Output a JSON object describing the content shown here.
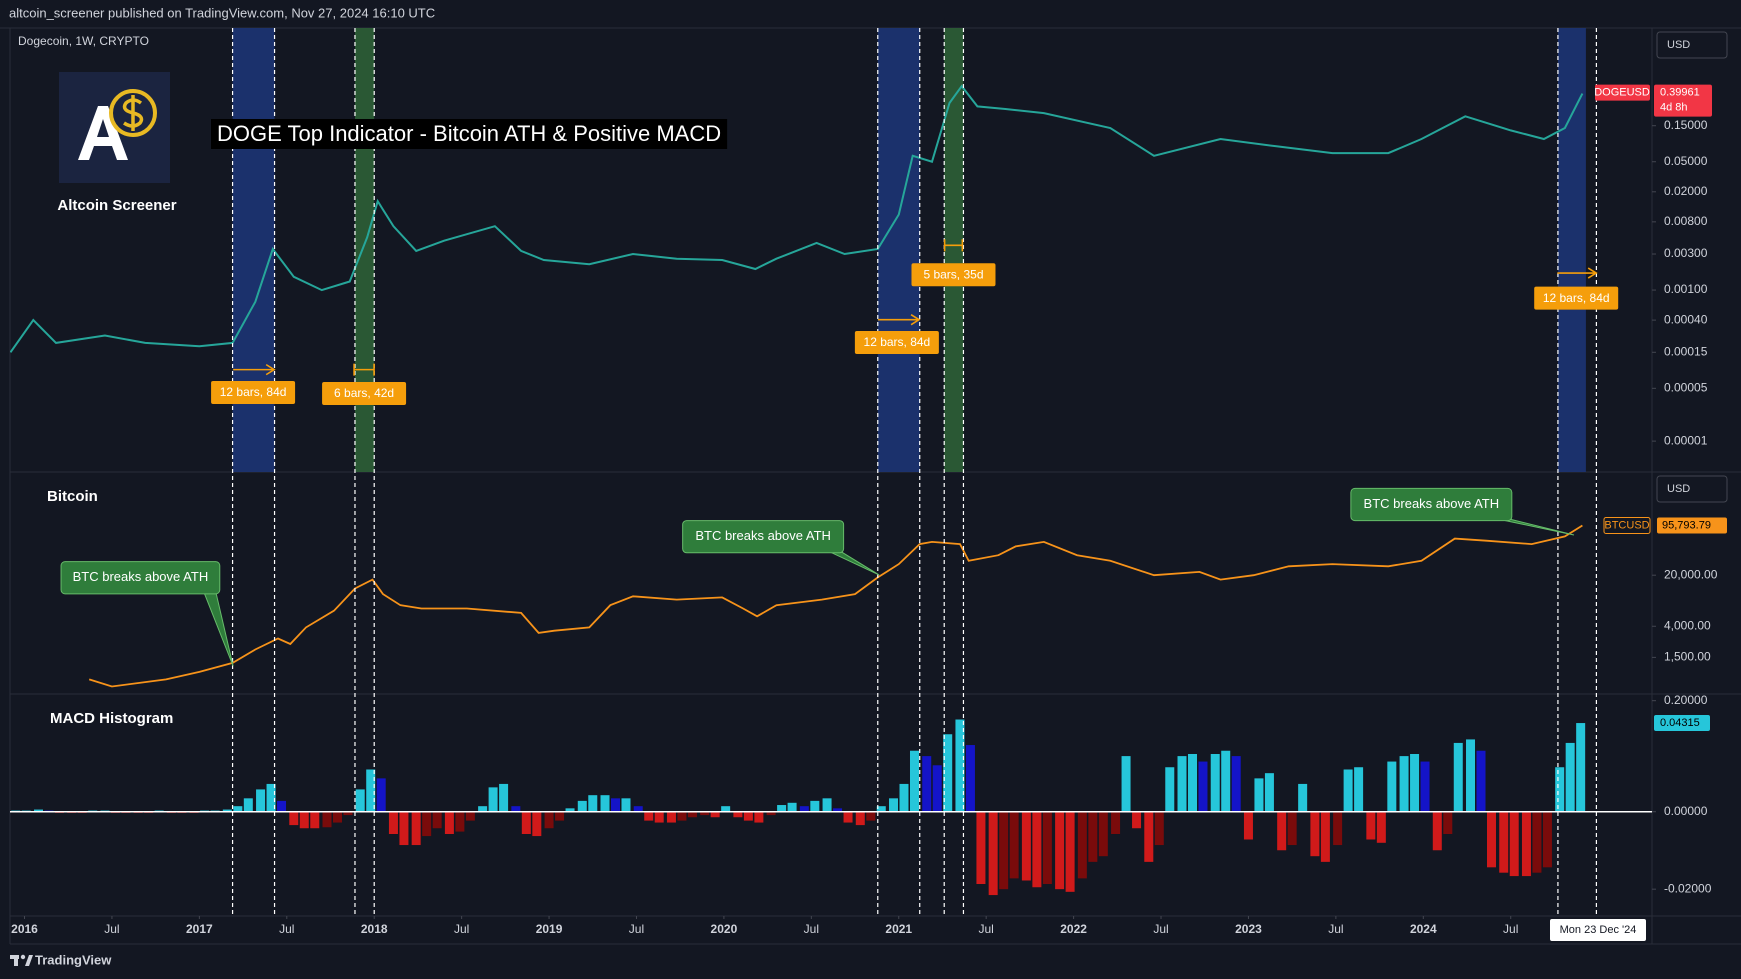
{
  "header": {
    "publisher": "altcoin_screener published on TradingView.com, Nov 27, 2024 16:10 UTC"
  },
  "logo": {
    "name": "Altcoin Screener"
  },
  "footer": {
    "brand": "TradingView"
  },
  "chart_data": [
    {
      "type": "line",
      "title": "DOGE Top Indicator - Bitcoin ATH & Positive MACD",
      "legend_title": "Dogecoin, 1W, CRYPTO",
      "currency": "USD",
      "log_scale": true,
      "x": [
        2015.92,
        2016.05,
        2016.18,
        2016.46,
        2016.69,
        2017.0,
        2017.19,
        2017.32,
        2017.42,
        2017.54,
        2017.7,
        2017.86,
        2017.96,
        2018.02,
        2018.11,
        2018.24,
        2018.4,
        2018.69,
        2018.84,
        2018.97,
        2019.23,
        2019.48,
        2019.73,
        2019.99,
        2020.18,
        2020.3,
        2020.53,
        2020.69,
        2020.88,
        2021.0,
        2021.08,
        2021.19,
        2021.29,
        2021.36,
        2021.45,
        2021.61,
        2021.83,
        2022.21,
        2022.46,
        2022.84,
        2023.16,
        2023.48,
        2023.8,
        2023.99,
        2024.24,
        2024.5,
        2024.69,
        2024.81,
        2024.91
      ],
      "series": [
        {
          "name": "DOGEUSD",
          "color": "#26a69a",
          "values": [
            0.00015,
            0.0004,
            0.0002,
            0.00025,
            0.0002,
            0.00018,
            0.0002,
            0.0007,
            0.0035,
            0.0015,
            0.001,
            0.0013,
            0.005,
            0.015,
            0.007,
            0.0033,
            0.0045,
            0.007,
            0.0033,
            0.0025,
            0.0022,
            0.003,
            0.0026,
            0.0025,
            0.0019,
            0.0026,
            0.0042,
            0.003,
            0.0035,
            0.01,
            0.06,
            0.05,
            0.3,
            0.5,
            0.27,
            0.25,
            0.22,
            0.14,
            0.06,
            0.1,
            0.08,
            0.065,
            0.065,
            0.1,
            0.2,
            0.13,
            0.1,
            0.14,
            0.39961
          ]
        }
      ],
      "countdown": "4d 8h",
      "xlim": [
        2015.917,
        2025.308
      ],
      "ylim": [
        3.9e-06,
        2.95
      ],
      "yticks": [
        {
          "value": 0.15,
          "label": "0.15000"
        },
        {
          "value": 0.05,
          "label": "0.05000"
        },
        {
          "value": 0.02,
          "label": "0.02000"
        },
        {
          "value": 0.008,
          "label": "0.00800"
        },
        {
          "value": 0.003,
          "label": "0.00300"
        },
        {
          "value": 0.001,
          "label": "0.00100"
        },
        {
          "value": 0.0004,
          "label": "0.00040"
        },
        {
          "value": 0.00015,
          "label": "0.00015"
        },
        {
          "value": 5e-05,
          "label": "0.00005"
        },
        {
          "value": 1e-05,
          "label": "0.00001"
        }
      ],
      "highlights": [
        {
          "start": 2017.19,
          "end": 2017.43,
          "color": "#1c3473"
        },
        {
          "start": 2017.89,
          "end": 2018.0,
          "color": "#2d5e36"
        },
        {
          "start": 2020.88,
          "end": 2021.12,
          "color": "#1c3473"
        },
        {
          "start": 2021.26,
          "end": 2021.37,
          "color": "#2d5e36"
        },
        {
          "start": 2024.77,
          "end": 2024.93,
          "color": "#1c3473"
        }
      ],
      "markers": [
        2017.19,
        2017.43,
        2017.89,
        2018.0,
        2020.88,
        2021.12,
        2021.26,
        2021.37,
        2024.77,
        2024.99
      ],
      "measure_labels": [
        "12 bars, 84d",
        "6 bars, 42d",
        "12 bars, 84d",
        "5 bars, 35d",
        "12 bars, 84d"
      ]
    },
    {
      "type": "line",
      "title": "Bitcoin",
      "currency": "USD",
      "log_scale": true,
      "x": [
        2016.37,
        2016.5,
        2016.81,
        2017.0,
        2017.19,
        2017.32,
        2017.45,
        2017.52,
        2017.61,
        2017.77,
        2017.89,
        2017.99,
        2018.05,
        2018.15,
        2018.27,
        2018.53,
        2018.84,
        2018.94,
        2019.03,
        2019.23,
        2019.35,
        2019.48,
        2019.73,
        2019.99,
        2020.11,
        2020.19,
        2020.3,
        2020.56,
        2020.75,
        2020.88,
        2021.0,
        2021.12,
        2021.19,
        2021.35,
        2021.4,
        2021.57,
        2021.67,
        2021.83,
        2022.02,
        2022.21,
        2022.46,
        2022.72,
        2022.84,
        2023.03,
        2023.23,
        2023.48,
        2023.8,
        2023.99,
        2024.18,
        2024.37,
        2024.62,
        2024.81,
        2024.91
      ],
      "series": [
        {
          "name": "BTCUSD",
          "color": "#f7931a",
          "values": [
            750,
            600,
            750,
            950,
            1260,
            1920,
            2720,
            2290,
            3860,
            6530,
            13140,
            17400,
            11030,
            7780,
            7000,
            7000,
            6090,
            3240,
            3480,
            3860,
            7780,
            10280,
            9270,
            9930,
            7000,
            5480,
            7780,
            9270,
            11030,
            18660,
            28400,
            53300,
            57100,
            53300,
            31500,
            37550,
            49700,
            57100,
            37550,
            31500,
            20000,
            22200,
            17400,
            20000,
            26500,
            28400,
            26500,
            31500,
            63450,
            59200,
            53300,
            68000,
            95793.79
          ],
          "value_labels": [
            null,
            null,
            null,
            null,
            null,
            null,
            null,
            null,
            null,
            null,
            null,
            null,
            null,
            null,
            null,
            null,
            null,
            null,
            null,
            null,
            null,
            null,
            null,
            null,
            null,
            null,
            null,
            null,
            null,
            null,
            null,
            null,
            null,
            null,
            null,
            null,
            null,
            null,
            null,
            null,
            null,
            null,
            null,
            null,
            null,
            null,
            null,
            null,
            null,
            null,
            null,
            null,
            "95,793.79"
          ]
        }
      ],
      "callouts": [
        "BTC breaks above ATH",
        "BTC breaks above ATH",
        "BTC breaks above ATH"
      ],
      "xlim": [
        2015.917,
        2025.308
      ],
      "ylim": [
        473,
        517000
      ],
      "yticks": [
        {
          "value": 20000,
          "label": "20,000.00"
        },
        {
          "value": 4000,
          "label": "4,000.00"
        },
        {
          "value": 1500,
          "label": "1,500.00"
        }
      ]
    },
    {
      "type": "bar",
      "title": "MACD Histogram",
      "yscale": "symlog",
      "x": [
        2015.95,
        2016.01,
        2016.08,
        2016.14,
        2016.2,
        2016.27,
        2016.33,
        2016.39,
        2016.46,
        2016.52,
        2016.58,
        2016.65,
        2016.71,
        2016.77,
        2016.84,
        2016.9,
        2016.97,
        2017.03,
        2017.09,
        2017.16,
        2017.22,
        2017.28,
        2017.35,
        2017.41,
        2017.47,
        2017.54,
        2017.6,
        2017.66,
        2017.73,
        2017.79,
        2017.85,
        2017.92,
        2017.98,
        2018.04,
        2018.11,
        2018.17,
        2018.24,
        2018.3,
        2018.36,
        2018.43,
        2018.49,
        2018.55,
        2018.62,
        2018.68,
        2018.74,
        2018.81,
        2018.87,
        2018.93,
        2019.0,
        2019.06,
        2019.12,
        2019.19,
        2019.25,
        2019.32,
        2019.38,
        2019.44,
        2019.51,
        2019.57,
        2019.63,
        2019.7,
        2019.76,
        2019.82,
        2019.89,
        2019.95,
        2020.01,
        2020.08,
        2020.14,
        2020.2,
        2020.27,
        2020.33,
        2020.39,
        2020.46,
        2020.52,
        2020.59,
        2020.65,
        2020.71,
        2020.78,
        2020.84,
        2020.9,
        2020.97,
        2021.03,
        2021.09,
        2021.16,
        2021.22,
        2021.28,
        2021.35,
        2021.41,
        2021.47,
        2021.54,
        2021.6,
        2021.66,
        2021.73,
        2021.79,
        2021.85,
        2021.92,
        2021.98,
        2022.05,
        2022.11,
        2022.17,
        2022.24,
        2022.3,
        2022.36,
        2022.43,
        2022.49,
        2022.55,
        2022.62,
        2022.68,
        2022.74,
        2022.81,
        2022.87,
        2022.93,
        2023.0,
        2023.06,
        2023.12,
        2023.19,
        2023.25,
        2023.31,
        2023.38,
        2023.44,
        2023.51,
        2023.57,
        2023.63,
        2023.7,
        2023.76,
        2023.82,
        2023.89,
        2023.95,
        2024.01,
        2024.08,
        2024.14,
        2024.2,
        2024.27,
        2024.33,
        2024.39,
        2024.46,
        2024.52,
        2024.59,
        2024.65,
        2024.71,
        2024.78,
        2024.84,
        2024.9
      ],
      "values": [
        8e-06,
        8e-06,
        1.6e-05,
        8e-06,
        -8e-06,
        -8e-06,
        -8e-06,
        8e-06,
        8e-06,
        -8e-06,
        -8e-06,
        -8e-06,
        -8e-06,
        8e-06,
        -8e-06,
        -8e-06,
        -8e-06,
        8e-06,
        8e-06,
        1.6e-05,
        4.6e-05,
        0.00015,
        0.00036,
        0.00057,
        0.00011,
        -0.00015,
        -0.00021,
        -0.00021,
        -0.00019,
        -0.00011,
        -2.6e-05,
        0.00036,
        0.0017,
        0.00088,
        -0.00036,
        -0.00088,
        -0.00088,
        -0.00043,
        -0.00021,
        -0.00036,
        -0.00029,
        -8.4e-05,
        4.6e-05,
        0.00043,
        0.00057,
        4.6e-05,
        -0.00036,
        -0.00043,
        -0.00021,
        -8.4e-05,
        2.6e-05,
        0.00011,
        0.00021,
        0.00021,
        0.00015,
        0.00015,
        4.6e-05,
        -8.4e-05,
        -0.00011,
        -0.00011,
        -8.4e-05,
        -4.6e-05,
        -2.6e-05,
        -4.6e-05,
        4.6e-05,
        -4.6e-05,
        -8.4e-05,
        -0.00011,
        -2.6e-05,
        5.8e-05,
        8.4e-05,
        4.6e-05,
        0.00011,
        0.00015,
        2.6e-05,
        -0.00011,
        -0.00015,
        -8.4e-05,
        4.6e-05,
        0.00015,
        0.00057,
        0.0064,
        0.0044,
        0.0023,
        0.02,
        0.055,
        0.0095,
        -0.014,
        -0.03,
        -0.02,
        -0.0095,
        -0.011,
        -0.0175,
        -0.014,
        -0.02,
        -0.024,
        -0.0095,
        -0.003,
        -0.002,
        -0.00036,
        0.0044,
        -0.00021,
        -0.003,
        -0.00088,
        0.002,
        0.0044,
        0.0051,
        0.003,
        0.0051,
        0.0064,
        0.0044,
        -0.00057,
        0.00088,
        0.0013,
        -0.0013,
        -0.00088,
        0.00057,
        -0.002,
        -0.003,
        -0.00088,
        0.0017,
        0.002,
        -0.00057,
        -0.00074,
        0.003,
        0.0044,
        0.0051,
        0.003,
        -0.0013,
        -0.00036,
        0.011,
        0.014,
        0.0064,
        -0.0044,
        -0.0064,
        -0.0081,
        -0.0081,
        -0.0064,
        -0.0044,
        0.002,
        0.011,
        0.04315
      ],
      "colors": {
        "positive_rising": "#26c6da",
        "positive_falling": "#1414c8",
        "negative_falling": "#d11a1a",
        "negative_rising": "#7a0b0b"
      },
      "xlim": [
        2015.917,
        2025.308
      ],
      "ylim": [
        -0.126,
        0.316
      ],
      "yticks": [
        {
          "value": 0.2,
          "label": "0.20000"
        },
        {
          "value": 0,
          "label": "0.00000"
        },
        {
          "value": -0.02,
          "label": "-0.02000"
        }
      ],
      "xticks": [
        2016,
        {
          "value": 2016.5,
          "label": "Jul"
        },
        2017,
        {
          "value": 2017.5,
          "label": "Jul"
        },
        2018,
        {
          "value": 2018.5,
          "label": "Jul"
        },
        2019,
        {
          "value": 2019.5,
          "label": "Jul"
        },
        2020,
        {
          "value": 2020.5,
          "label": "Jul"
        },
        2021,
        {
          "value": 2021.5,
          "label": "Jul"
        },
        2022,
        {
          "value": 2022.5,
          "label": "Jul"
        },
        2023,
        {
          "value": 2023.5,
          "label": "Jul"
        },
        2024,
        {
          "value": 2024.5,
          "label": "Jul"
        }
      ],
      "crosshair_label": "Mon 23 Dec '24"
    }
  ]
}
